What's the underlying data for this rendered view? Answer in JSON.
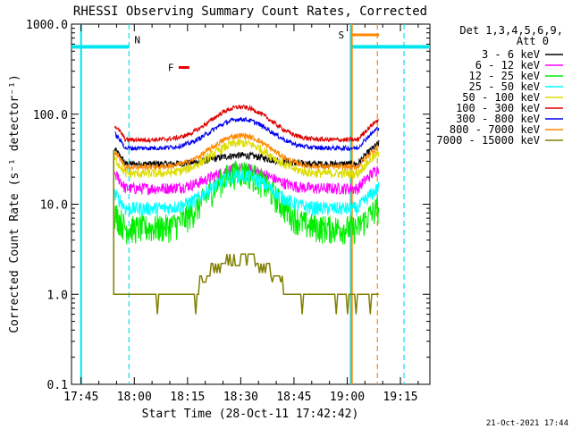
{
  "chart_data": {
    "type": "line",
    "title": "RHESSI Observing Summary Count Rates, Corrected",
    "xlabel": "Start Time (28-Oct-11 17:42:42)",
    "ylabel": "Corrected Count Rate (s⁻¹ detector⁻¹)",
    "yscale": "log",
    "ylim": [
      0.1,
      1000
    ],
    "xlim_minutes": [
      -2.7,
      98.3
    ],
    "x_unit": "minutes since 17:45",
    "yticks": [
      {
        "label": "0.1",
        "value": 0.1
      },
      {
        "label": "1.0",
        "value": 1
      },
      {
        "label": "10.0",
        "value": 10
      },
      {
        "label": "100.0",
        "value": 100
      },
      {
        "label": "1000.0",
        "value": 1000
      }
    ],
    "xticks": [
      {
        "label": "17:45",
        "value": 0
      },
      {
        "label": "18:00",
        "value": 15
      },
      {
        "label": "18:15",
        "value": 30
      },
      {
        "label": "18:30",
        "value": 45
      },
      {
        "label": "18:45",
        "value": 60
      },
      {
        "label": "19:00",
        "value": 75
      },
      {
        "label": "19:15",
        "value": 90
      }
    ],
    "legend_title": [
      "Det 1,3,4,5,6,9,",
      "Att 0"
    ],
    "legend_position": "outside-right",
    "series": [
      {
        "name": "3 - 6 keV",
        "color": "#000000",
        "base": 28,
        "peak": 35,
        "noise": 0.03
      },
      {
        "name": "6 - 12 keV",
        "color": "#ff00ff",
        "base": 15,
        "peak": 25,
        "noise": 0.05
      },
      {
        "name": "12 - 25 keV",
        "color": "#00ee00",
        "base": 5.5,
        "peak": 23,
        "noise": 0.12
      },
      {
        "name": "25 - 50 keV",
        "color": "#00ffff",
        "base": 9,
        "peak": 21,
        "noise": 0.06
      },
      {
        "name": "50 - 100 keV",
        "color": "#dddd00",
        "base": 22,
        "peak": 48,
        "noise": 0.04
      },
      {
        "name": "100 - 300 keV",
        "color": "#dd0000",
        "base": 52,
        "peak": 120,
        "noise": 0.02
      },
      {
        "name": "300 - 800 keV",
        "color": "#0000ee",
        "base": 42,
        "peak": 88,
        "noise": 0.02
      },
      {
        "name": "800 - 7000 keV",
        "color": "#ff8800",
        "base": 26,
        "peak": 58,
        "noise": 0.025
      },
      {
        "name": "7000 - 15000 keV",
        "color": "#808000",
        "base": 1.0,
        "peak": 2.8,
        "noise": 0.0
      }
    ],
    "data_start_minute": 9.5,
    "data_end_minute": 84,
    "peak_minute": 45,
    "intervals": [
      {
        "label": "N",
        "color": "#00e5ee",
        "start_minute": 0,
        "end_minute": 13.5,
        "start_style": "solid",
        "end_style": "dashed"
      },
      {
        "label": "F",
        "color": "#ee0000",
        "start_minute": 27.5,
        "end_minute": 30.5
      },
      {
        "label": "S",
        "color": "#ff8800",
        "start_minute": 76,
        "end_minute": 84
      },
      {
        "label": "",
        "color": "#00e5ee",
        "start_minute": 76,
        "end_minute": 98.3,
        "start_style": "solid",
        "end_style": "dashed"
      }
    ],
    "vertical_markers": [
      {
        "minute": 0,
        "color": "#00e5ee",
        "style": "solid"
      },
      {
        "minute": 13.5,
        "color": "#00e5ee",
        "style": "dashed"
      },
      {
        "minute": 76,
        "color": "#00e5ee",
        "style": "solid"
      },
      {
        "minute": 76.3,
        "color": "#ff8800",
        "style": "solid"
      },
      {
        "minute": 83.5,
        "color": "#ff8800",
        "style": "dashed"
      },
      {
        "minute": 91,
        "color": "#00e5ee",
        "style": "dashed"
      }
    ],
    "timestamp": "21-Oct-2021 17:44"
  }
}
